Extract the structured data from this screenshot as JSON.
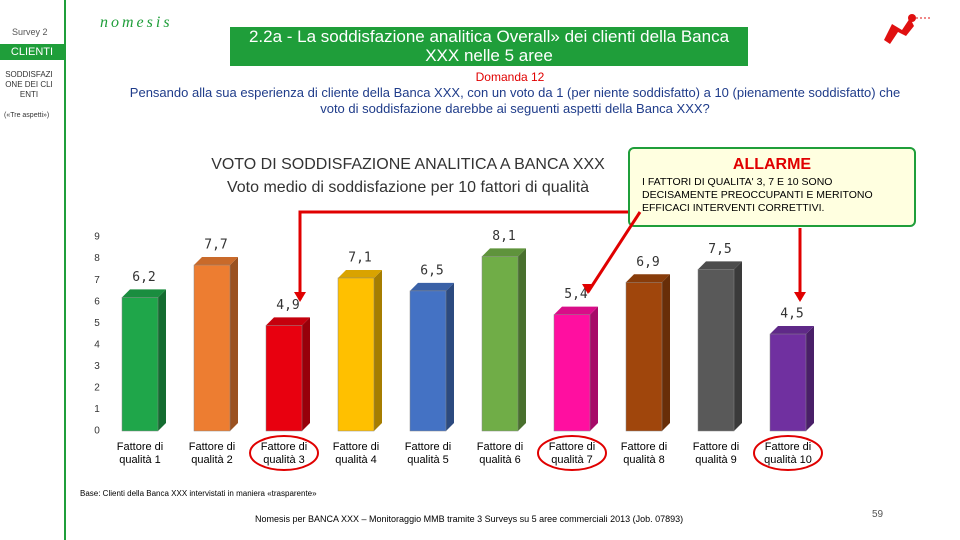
{
  "sidebar": {
    "survey": "Survey 2",
    "section": "CLIENTI",
    "topic": "SODDISFAZIONE DEI CLIENTI",
    "note": "(«Tre aspetti»)"
  },
  "logo": "nomesis",
  "header": {
    "title": "2.2a - La soddisfazione analitica Overall» dei clienti della Banca XXX nelle 5 aree"
  },
  "question": {
    "label": "Domanda 12",
    "text": "Pensando alla sua esperienza di cliente della Banca XXX, con un voto da 1 (per niente soddisfatto) a 10 (pienamente soddisfatto) che voto di soddisfazione darebbe ai seguenti aspetti della Banca XXX?"
  },
  "alarm": {
    "title": "ALLARME",
    "text": "I FATTORI DI QUALITA' 3, 7 E 10 SONO DECISAMENTE PREOCCUPANTI E MERITONO EFFICACI INTERVENTI CORRETTIVI."
  },
  "chart_data": {
    "type": "bar",
    "title": "VOTO DI SODDISFAZIONE ANALITICA A BANCA XXX",
    "subtitle": "Voto medio di soddisfazione per 10 fattori di qualità",
    "categories": [
      "Fattore di qualità 1",
      "Fattore di qualità 2",
      "Fattore di qualità 3",
      "Fattore di qualità 4",
      "Fattore di qualità 5",
      "Fattore di qualità 6",
      "Fattore di qualità 7",
      "Fattore di qualità 8",
      "Fattore di qualità 9",
      "Fattore di qualità 10"
    ],
    "values": [
      6.2,
      7.7,
      4.9,
      7.1,
      6.5,
      8.1,
      5.4,
      6.9,
      7.5,
      4.5
    ],
    "value_labels": [
      "6,2",
      "7,7",
      "4,9",
      "7,1",
      "6,5",
      "8,1",
      "5,4",
      "6,9",
      "7,5",
      "4,5"
    ],
    "colors": [
      "#1fa64a",
      "#ed7d31",
      "#e8000f",
      "#ffc000",
      "#4472c4",
      "#70ad47",
      "#ff0fa0",
      "#a0460c",
      "#595959",
      "#7030a0"
    ],
    "ylim": [
      0,
      9
    ],
    "yticks": [
      0,
      1,
      2,
      3,
      4,
      5,
      6,
      7,
      8,
      9
    ],
    "grid": false
  },
  "base": "Base: Clienti della Banca XXX intervistati in maniera «trasparente»",
  "footer": "Nomesis per BANCA XXX – Monitoraggio MMB tramite 3 Surveys su 5 aree commerciali 2013 (Job. 07893)",
  "page_number": "59"
}
